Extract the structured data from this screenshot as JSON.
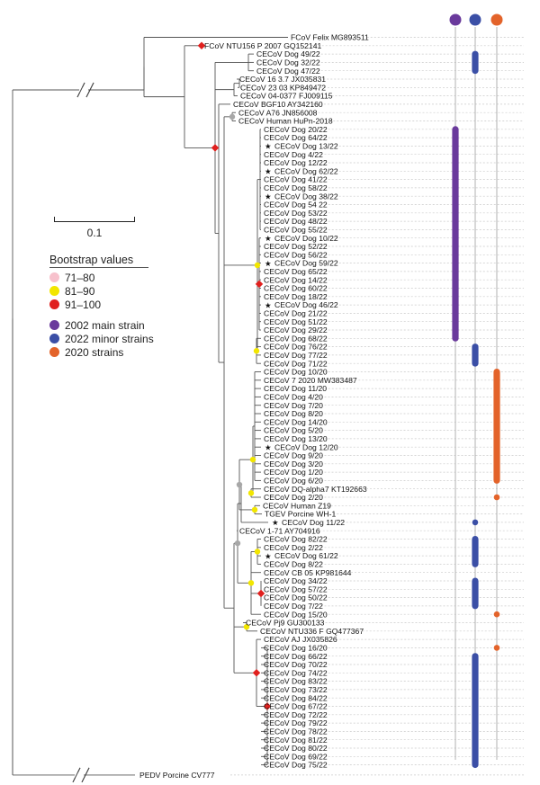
{
  "figure": {
    "bootstrap_title": "Bootstrap values",
    "bootstrap": [
      {
        "label": "71–80",
        "color": "#f7c1cc"
      },
      {
        "label": "81–90",
        "color": "#f2e600"
      },
      {
        "label": "91–100",
        "color": "#e0201e"
      }
    ],
    "strains": [
      {
        "label": "2002 main strain",
        "color": "#6a3a9c"
      },
      {
        "label": "2022 minor strains",
        "color": "#3b4fa6"
      },
      {
        "label": "2020 strains",
        "color": "#e3632a"
      }
    ],
    "scale_label": "0.1",
    "unsupported_node_color": "#a7a7a7",
    "outgroup": "PEDV Porcine CV777",
    "taxa": [
      {
        "name": "FCoV Felix MG893511"
      },
      {
        "name": "FCoV NTU156 P 2007 GQ152141"
      },
      {
        "name": "CECoV Dog 49/22"
      },
      {
        "name": "CECoV Dog 32/22"
      },
      {
        "name": "CECoV Dog 47/22"
      },
      {
        "name": "CECoV 16 3.7 JX035831"
      },
      {
        "name": "CECoV 23 03 KP849472"
      },
      {
        "name": "CECoV 04-0377 FJ009115"
      },
      {
        "name": "CECoV BGF10 AY342160"
      },
      {
        "name": "CECoV A76 JN856008"
      },
      {
        "name": "CECoV Human HuPn-2018"
      },
      {
        "name": "CECoV Dog 20/22"
      },
      {
        "name": "CECoV Dog 64/22"
      },
      {
        "name": "CECoV Dog 13/22",
        "star": true
      },
      {
        "name": "CECoV Dog 4/22"
      },
      {
        "name": "CECoV Dog 12/22"
      },
      {
        "name": "CECoV Dog 62/22",
        "star": true
      },
      {
        "name": "CECoV Dog 41/22"
      },
      {
        "name": "CECoV Dog 58/22"
      },
      {
        "name": "CECoV Dog 38/22",
        "star": true
      },
      {
        "name": "CECoV Dog 54 22"
      },
      {
        "name": "CECoV Dog 53/22"
      },
      {
        "name": "CECoV Dog 48/22"
      },
      {
        "name": "CECoV Dog 55/22"
      },
      {
        "name": "CECoV Dog 10/22",
        "star": true
      },
      {
        "name": "CECoV Dog 52/22"
      },
      {
        "name": "CECoV Dog 56/22"
      },
      {
        "name": "CECoV Dog 59/22",
        "star": true
      },
      {
        "name": "CECoV Dog 65/22"
      },
      {
        "name": "CECoV Dog 14/22"
      },
      {
        "name": "CECoV Dog 60/22"
      },
      {
        "name": "CECoV Dog 18/22"
      },
      {
        "name": "CECoV Dog 46/22",
        "star": true
      },
      {
        "name": "CECoV Dog 21/22"
      },
      {
        "name": "CECoV Dog 51/22"
      },
      {
        "name": "CECoV Dog 29/22"
      },
      {
        "name": "CECoV Dog 68/22"
      },
      {
        "name": "CECoV Dog 76/22"
      },
      {
        "name": "CECoV Dog 77/22"
      },
      {
        "name": "CECoV Dog 71/22"
      },
      {
        "name": "CECoV Dog 10/20"
      },
      {
        "name": "CECoV 7 2020 MW383487"
      },
      {
        "name": "CECoV Dog 11/20"
      },
      {
        "name": "CECoV Dog 4/20"
      },
      {
        "name": "CECoV Dog 7/20"
      },
      {
        "name": "CECoV Dog 8/20"
      },
      {
        "name": "CECoV Dog 14/20"
      },
      {
        "name": "CECoV Dog 5/20"
      },
      {
        "name": "CECoV Dog 13/20"
      },
      {
        "name": "CECoV Dog 12/20",
        "star": true
      },
      {
        "name": "CECoV Dog 9/20"
      },
      {
        "name": "CECoV Dog 3/20"
      },
      {
        "name": "CECoV Dog 1/20"
      },
      {
        "name": "CECoV Dog 6/20"
      },
      {
        "name": "CECoV DQ-alpha7 KT192663"
      },
      {
        "name": "CECoV Dog 2/20"
      },
      {
        "name": "CECoV Human Z19"
      },
      {
        "name": "TGEV Porcine WH-1"
      },
      {
        "name": "CECoV Dog 11/22",
        "star": true
      },
      {
        "name": "CECoV 1-71 AY704916"
      },
      {
        "name": "CECoV Dog 82/22"
      },
      {
        "name": "CECoV Dog 2/22"
      },
      {
        "name": "CECoV Dog 61/22",
        "star": true
      },
      {
        "name": "CECoV Dog 8/22"
      },
      {
        "name": "CECoV CB 05 KP981644"
      },
      {
        "name": "CECoV Dog 34/22"
      },
      {
        "name": "CECoV Dog 57/22"
      },
      {
        "name": "CECoV Dog 50/22"
      },
      {
        "name": "CECoV Dog 7/22"
      },
      {
        "name": "CECoV Dog 15/20"
      },
      {
        "name": "CECoV Pj9 GU300133"
      },
      {
        "name": "CECoV NTU336 F GQ477367"
      },
      {
        "name": "CECoV AJ JX035826"
      },
      {
        "name": "CECoV Dog 16/20"
      },
      {
        "name": "CECoV Dog 66/22"
      },
      {
        "name": "CECoV Dog 70/22"
      },
      {
        "name": "CECoV Dog 74/22"
      },
      {
        "name": "CECoV Dog 83/22"
      },
      {
        "name": "CECoV Dog 73/22"
      },
      {
        "name": "CECoV Dog 84/22"
      },
      {
        "name": "CECoV Dog 67/22"
      },
      {
        "name": "CECoV Dog 72/22"
      },
      {
        "name": "CECoV Dog 79/22"
      },
      {
        "name": "CECoV Dog 78/22"
      },
      {
        "name": "CECoV Dog 81/22"
      },
      {
        "name": "CECoV Dog 80/22"
      },
      {
        "name": "CECoV Dog 69/22"
      },
      {
        "name": "CECoV Dog 75/22"
      }
    ],
    "strain_ranges": [
      {
        "strain": 0,
        "from": "CECoV Dog 20/22",
        "to": "CECoV Dog 68/22"
      },
      {
        "strain": 1,
        "from": "CECoV Dog 49/22",
        "to": "CECoV Dog 47/22"
      },
      {
        "strain": 1,
        "from": "CECoV Dog 76/22",
        "to": "CECoV Dog 71/22"
      },
      {
        "strain": 1,
        "from": "CECoV Dog 11/22",
        "to": "CECoV Dog 11/22"
      },
      {
        "strain": 1,
        "from": "CECoV Dog 82/22",
        "to": "CECoV Dog 8/22"
      },
      {
        "strain": 1,
        "from": "CECoV Dog 34/22",
        "to": "CECoV Dog 7/22"
      },
      {
        "strain": 1,
        "from": "CECoV Dog 66/22",
        "to": "CECoV Dog 75/22"
      },
      {
        "strain": 2,
        "from": "CECoV Dog 10/20",
        "to": "CECoV Dog 6/20"
      },
      {
        "strain": 2,
        "from": "CECoV Dog 2/20",
        "to": "CECoV Dog 2/20"
      },
      {
        "strain": 2,
        "from": "CECoV Dog 15/20",
        "to": "CECoV Dog 15/20"
      },
      {
        "strain": 2,
        "from": "CECoV Dog 16/20",
        "to": "CECoV Dog 16/20"
      }
    ]
  }
}
